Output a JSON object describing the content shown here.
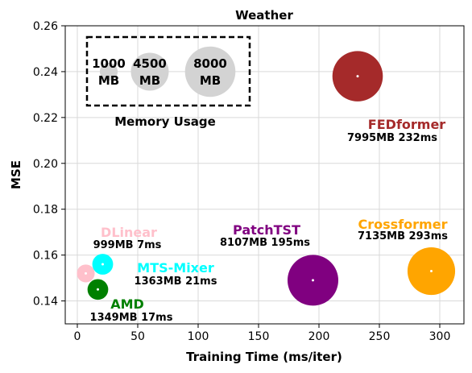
{
  "chart_data": {
    "type": "scatter",
    "title": "Weather",
    "xlabel": "Training Time (ms/iter)",
    "ylabel": "MSE",
    "xlim": [
      -10,
      320
    ],
    "ylim": [
      0.13,
      0.26
    ],
    "xticks": [
      0,
      50,
      100,
      150,
      200,
      250,
      300
    ],
    "yticks": [
      0.14,
      0.16,
      0.18,
      0.2,
      0.22,
      0.24,
      0.26
    ],
    "xtick_labels": [
      "0",
      "50",
      "100",
      "150",
      "200",
      "250",
      "300"
    ],
    "ytick_labels": [
      "0.14",
      "0.16",
      "0.18",
      "0.20",
      "0.22",
      "0.24",
      "0.26"
    ],
    "grid": true,
    "legend": "top-left",
    "size_encoding": "memory_mb",
    "points": [
      {
        "name": "FEDformer",
        "x": 232,
        "y": 0.238,
        "memory_mb": 7995,
        "color": "#a52a2a",
        "detail": "7995MB 232ms"
      },
      {
        "name": "Crossformer",
        "x": 293,
        "y": 0.153,
        "memory_mb": 7135,
        "color": "#ffa500",
        "detail": "7135MB 293ms"
      },
      {
        "name": "PatchTST",
        "x": 195,
        "y": 0.149,
        "memory_mb": 8107,
        "color": "#800080",
        "detail": "8107MB 195ms"
      },
      {
        "name": "DLinear",
        "x": 7,
        "y": 0.152,
        "memory_mb": 999,
        "color": "#ffc0cb",
        "detail": "999MB 7ms"
      },
      {
        "name": "MTS-Mixer",
        "x": 21,
        "y": 0.156,
        "memory_mb": 1363,
        "color": "#00ffff",
        "detail": "1363MB 21ms"
      },
      {
        "name": "AMD",
        "x": 17,
        "y": 0.145,
        "memory_mb": 1349,
        "color": "#008000",
        "detail": "1349MB 17ms"
      }
    ],
    "legend_box": {
      "title": "Memory Usage",
      "entries": [
        {
          "memory_mb": 1000,
          "label_line1": "1000",
          "label_line2": "MB"
        },
        {
          "memory_mb": 4500,
          "label_line1": "4500",
          "label_line2": "MB"
        },
        {
          "memory_mb": 8000,
          "label_line1": "8000",
          "label_line2": "MB"
        }
      ],
      "color": "#d3d3d3"
    }
  }
}
